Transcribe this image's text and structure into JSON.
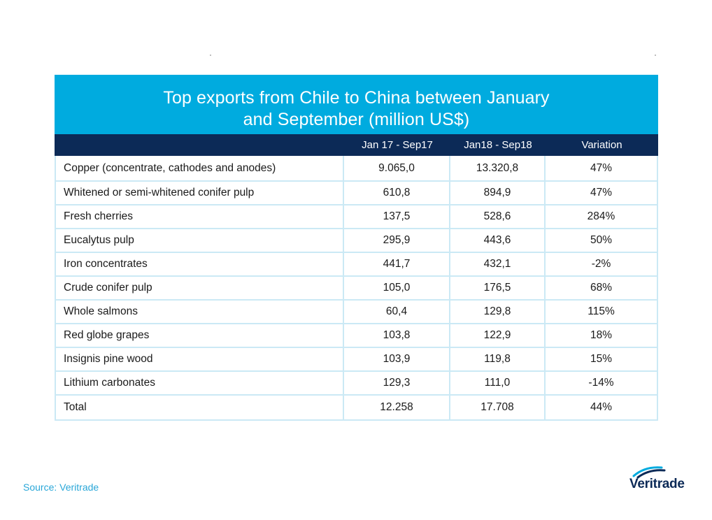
{
  "chart_data": {
    "type": "table",
    "title": "Top exports from Chile to China between January\nand September (million US$)",
    "columns": [
      "",
      "Jan 17 - Sep17",
      "Jan18 - Sep18",
      "Variation"
    ],
    "rows": [
      {
        "product": "Copper (concentrate, cathodes and anodes)",
        "jan17_sep17": "9.065,0",
        "jan18_sep18": "13.320,8",
        "variation": "47%"
      },
      {
        "product": "Whitened or semi-whitened conifer pulp",
        "jan17_sep17": "610,8",
        "jan18_sep18": "894,9",
        "variation": "47%"
      },
      {
        "product": "Fresh cherries",
        "jan17_sep17": "137,5",
        "jan18_sep18": "528,6",
        "variation": "284%"
      },
      {
        "product": "Eucalytus pulp",
        "jan17_sep17": "295,9",
        "jan18_sep18": "443,6",
        "variation": "50%"
      },
      {
        "product": "Iron concentrates",
        "jan17_sep17": "441,7",
        "jan18_sep18": "432,1",
        "variation": "-2%"
      },
      {
        "product": "Crude conifer pulp",
        "jan17_sep17": "105,0",
        "jan18_sep18": "176,5",
        "variation": "68%"
      },
      {
        "product": "Whole salmons",
        "jan17_sep17": "60,4",
        "jan18_sep18": "129,8",
        "variation": "115%"
      },
      {
        "product": "Red globe grapes",
        "jan17_sep17": "103,8",
        "jan18_sep18": "122,9",
        "variation": "18%"
      },
      {
        "product": "Insignis pine wood",
        "jan17_sep17": "103,9",
        "jan18_sep18": "119,8",
        "variation": "15%"
      },
      {
        "product": "Lithium carbonates",
        "jan17_sep17": "129,3",
        "jan18_sep18": "111,0",
        "variation": "-14%"
      },
      {
        "product": "Total",
        "jan17_sep17": "12.258",
        "jan18_sep18": "17.708",
        "variation": "44%"
      }
    ]
  },
  "source": "Source: Veritrade",
  "logo": {
    "text": "Veritrade",
    "icon": "veritrade-swoosh-icon"
  },
  "colors": {
    "title_bg": "#00abdf",
    "header_bg": "#0c2a57",
    "grid": "#cbe9f5",
    "source_text": "#2aa7d8",
    "logo_text": "#0c2a57"
  }
}
